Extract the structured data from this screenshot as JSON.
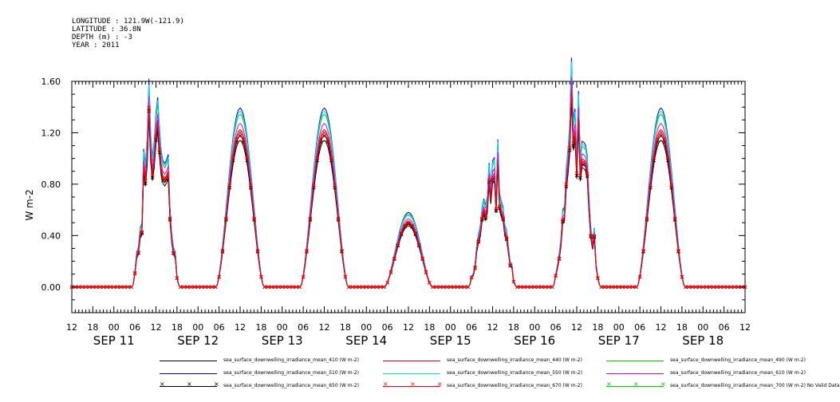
{
  "metadata": {
    "lines": [
      "LONGITUDE : 121.9W(-121.9)",
      "LATITUDE : 36.8N",
      "DEPTH (m) : -3",
      "YEAR : 2011"
    ]
  },
  "colors": {
    "mean_410": "#000000",
    "mean_440": "#ff0000",
    "mean_490": "#00cc00",
    "mean_510": "#0000ff",
    "mean_550": "#00e5e5",
    "mean_610": "#e500e5",
    "mean_650": "#000000",
    "mean_670": "#ff0000",
    "mean_700": "#00cc00"
  },
  "chart_data": {
    "type": "line",
    "title": "",
    "xlabel": "",
    "ylabel": "W m-2",
    "ylim": [
      -0.2,
      1.6
    ],
    "yticks": [
      "1.60",
      "1.20",
      "0.80",
      "0.40",
      "0.00"
    ],
    "ytick_values": [
      1.6,
      1.2,
      0.8,
      0.4,
      0.0
    ],
    "xlim_hours": [
      0,
      192
    ],
    "xtick_labels": [
      "12",
      "18",
      "00",
      "06",
      "12",
      "18",
      "00",
      "06",
      "12",
      "18",
      "00",
      "06",
      "12",
      "18",
      "00",
      "06",
      "12",
      "18",
      "00",
      "06",
      "12",
      "18",
      "00",
      "06",
      "12",
      "18",
      "00",
      "06",
      "12",
      "18",
      "00",
      "06",
      "12"
    ],
    "day_labels": [
      "SEP 11",
      "SEP 12",
      "SEP 13",
      "SEP 14",
      "SEP 15",
      "SEP 16",
      "SEP 17",
      "SEP 18"
    ],
    "grid": false,
    "legend_position": "bottom",
    "daily_peaks": [
      {
        "day": "SEP 11",
        "noon_hour": 24,
        "peak": 1.2,
        "noisy": true
      },
      {
        "day": "SEP 12",
        "noon_hour": 48,
        "peak": 1.2,
        "noisy": false
      },
      {
        "day": "SEP 13",
        "noon_hour": 72,
        "peak": 1.2,
        "noisy": false
      },
      {
        "day": "SEP 14",
        "noon_hour": 96,
        "peak": 0.5,
        "noisy": false
      },
      {
        "day": "SEP 15",
        "noon_hour": 120,
        "peak": 0.82,
        "noisy": true
      },
      {
        "day": "SEP 16",
        "noon_hour": 144,
        "peak": 1.22,
        "noisy": true
      },
      {
        "day": "SEP 17",
        "noon_hour": 168,
        "peak": 1.2,
        "noisy": false
      }
    ],
    "series": [
      {
        "name": "sea_surface_downwelling_irradiance_mean_410 (W m-2)",
        "scale": 0.95,
        "color": "#000000",
        "marker": ""
      },
      {
        "name": "sea_surface_downwelling_irradiance_mean_440 (W m-2)",
        "scale": 1.02,
        "color": "#ff0000",
        "marker": ""
      },
      {
        "name": "sea_surface_downwelling_irradiance_mean_490 (W m-2)",
        "scale": 1.12,
        "color": "#00cc00",
        "marker": ""
      },
      {
        "name": "sea_surface_downwelling_irradiance_mean_510 (W m-2)",
        "scale": 1.16,
        "color": "#0000ff",
        "marker": ""
      },
      {
        "name": "sea_surface_downwelling_irradiance_mean_550 (W m-2)",
        "scale": 1.14,
        "color": "#00e5e5",
        "marker": ""
      },
      {
        "name": "sea_surface_downwelling_irradiance_mean_610 (W m-2)",
        "scale": 1.06,
        "color": "#e500e5",
        "marker": ""
      },
      {
        "name": "sea_surface_downwelling_irradiance_mean_650 (W m-2)",
        "scale": 0.98,
        "color": "#000000",
        "marker": "x"
      },
      {
        "name": "sea_surface_downwelling_irradiance_mean_670 (W m-2)",
        "scale": 1.0,
        "color": "#ff0000",
        "marker": "x"
      },
      {
        "name": "sea_surface_downwelling_irradiance_mean_700 (W m-2) No Valid Data",
        "scale": 0,
        "color": "#00cc00",
        "marker": "x"
      }
    ]
  }
}
